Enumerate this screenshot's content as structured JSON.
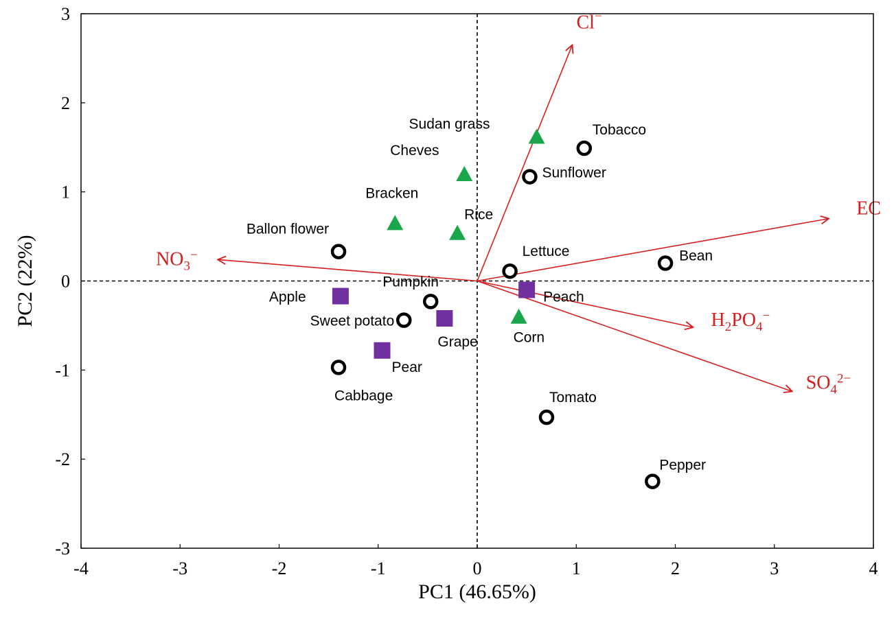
{
  "chart_data": {
    "type": "scatter",
    "subtype": "pca-biplot",
    "title": "",
    "xlabel": "PC1 (46.65%)",
    "ylabel": "PC2 (22%)",
    "xlim": [
      -4,
      4
    ],
    "ylim": [
      -3,
      3
    ],
    "xticks": [
      "-4",
      "-3",
      "-2",
      "-1",
      "0",
      "1",
      "2",
      "3",
      "4"
    ],
    "yticks": [
      "3",
      "2",
      "1",
      "0",
      "-1",
      "-2",
      "-3"
    ],
    "grid": false,
    "legend": "none",
    "reference_lines": {
      "x0": "dashed",
      "y0": "dashed"
    },
    "series": [
      {
        "marker": "circle-open",
        "color": "#000000",
        "points": [
          {
            "label": "Tobacco",
            "x": 1.08,
            "y": 1.49
          },
          {
            "label": "Sunflower",
            "x": 0.53,
            "y": 1.17
          },
          {
            "label": "Ballon flower",
            "x": -1.4,
            "y": 0.33
          },
          {
            "label": "Lettuce",
            "x": 0.33,
            "y": 0.11
          },
          {
            "label": "Bean",
            "x": 1.9,
            "y": 0.2
          },
          {
            "label": "Pumpkin",
            "x": -0.47,
            "y": -0.23
          },
          {
            "label": "Sweet potato",
            "x": -0.74,
            "y": -0.44
          },
          {
            "label": "Cabbage",
            "x": -1.4,
            "y": -0.97
          },
          {
            "label": "Tomato",
            "x": 0.7,
            "y": -1.53
          },
          {
            "label": "Pepper",
            "x": 1.77,
            "y": -2.25
          }
        ]
      },
      {
        "marker": "triangle",
        "color": "#1aa64a",
        "points": [
          {
            "label": "Sudan grass",
            "x": 0.6,
            "y": 1.61
          },
          {
            "label": "Cheves",
            "x": -0.13,
            "y": 1.19
          },
          {
            "label": "Bracken",
            "x": -0.83,
            "y": 0.64
          },
          {
            "label": "Rice",
            "x": -0.2,
            "y": 0.53
          },
          {
            "label": "Corn",
            "x": 0.42,
            "y": -0.41
          }
        ]
      },
      {
        "marker": "square",
        "color": "#7030a0",
        "points": [
          {
            "label": "Apple",
            "x": -1.38,
            "y": -0.17
          },
          {
            "label": "Peach",
            "x": 0.5,
            "y": -0.1
          },
          {
            "label": "Grape",
            "x": -0.33,
            "y": -0.42
          },
          {
            "label": "Pear",
            "x": -0.96,
            "y": -0.78
          }
        ]
      }
    ],
    "vectors": {
      "color": "#d42020",
      "items": [
        {
          "label": "Cl",
          "sup": "−",
          "x": 0.96,
          "y": 2.65
        },
        {
          "label": "EC",
          "x": 3.55,
          "y": 0.7
        },
        {
          "label": "NO",
          "sub": "3",
          "sup": "−",
          "x": -2.62,
          "y": 0.24
        },
        {
          "label": "H",
          "sub": "2",
          "mid": "PO",
          "sub2": "4",
          "sup": "−",
          "x": 2.18,
          "y": -0.52
        },
        {
          "label": "SO",
          "sub": "4",
          "sup": "2−",
          "x": 3.18,
          "y": -1.24
        }
      ]
    }
  }
}
